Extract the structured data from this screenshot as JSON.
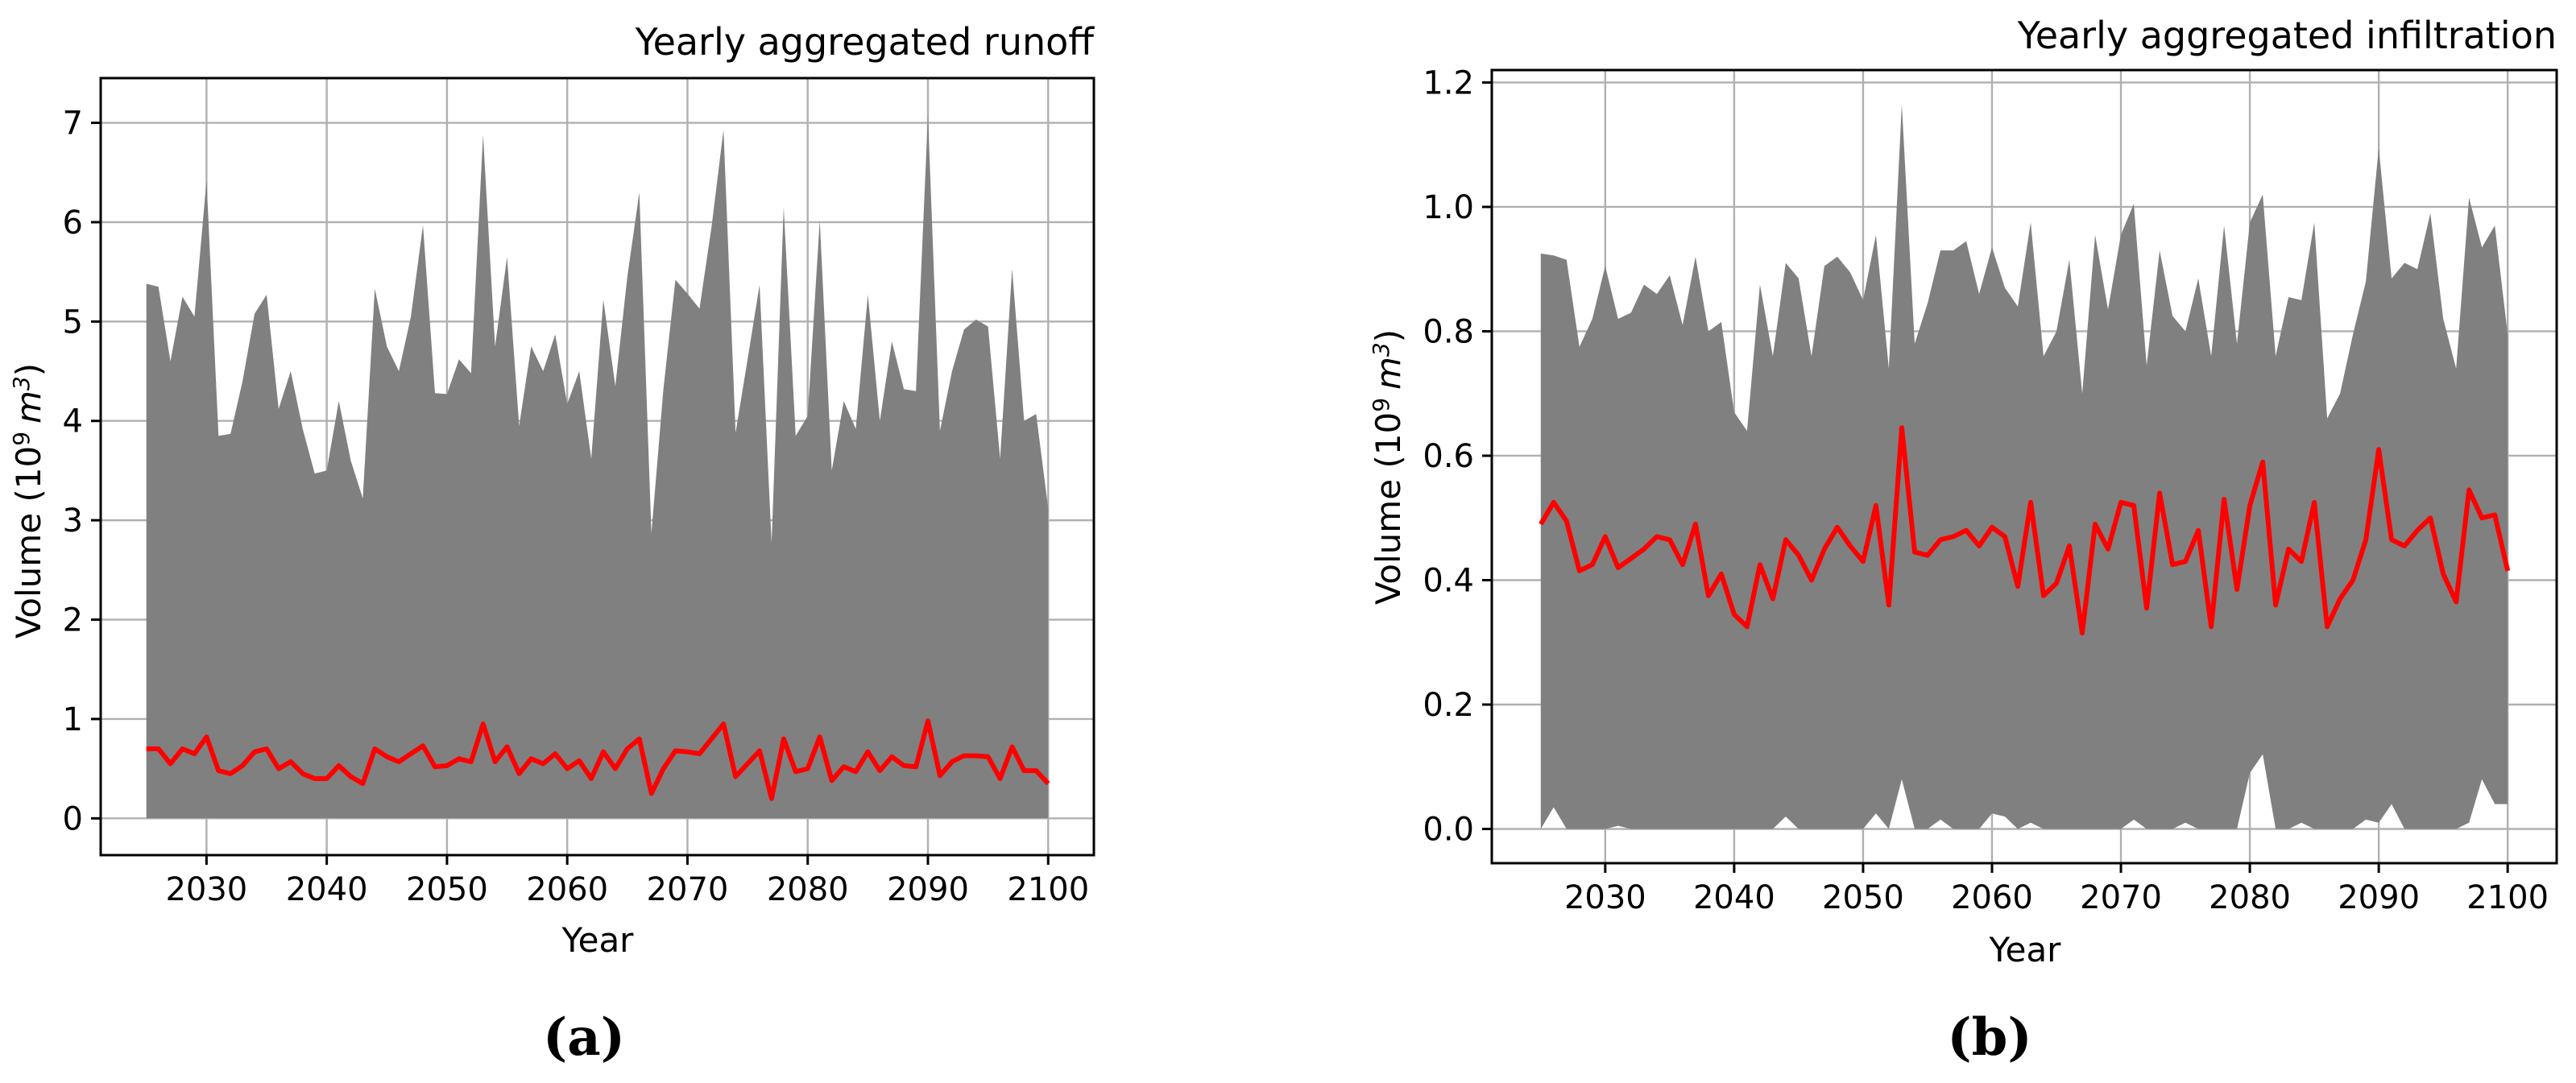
{
  "chart_data": [
    {
      "type": "area",
      "panel_label": "(a)",
      "title": "Yearly aggregated runoff",
      "xlabel": "Year",
      "ylabel_prefix": "Volume (10",
      "ylabel_exp": "9",
      "ylabel_unit": "m",
      "ylabel_unit_exp": "3",
      "ylabel_suffix": ")",
      "xlim": [
        2021.2,
        2103.8
      ],
      "ylim": [
        -0.37,
        7.45
      ],
      "xticks": [
        2030,
        2040,
        2050,
        2060,
        2070,
        2080,
        2090,
        2100
      ],
      "yticks": [
        0,
        1,
        2,
        3,
        4,
        5,
        6,
        7
      ],
      "grid": true,
      "x": [
        2025,
        2026,
        2027,
        2028,
        2029,
        2030,
        2031,
        2032,
        2033,
        2034,
        2035,
        2036,
        2037,
        2038,
        2039,
        2040,
        2041,
        2042,
        2043,
        2044,
        2045,
        2046,
        2047,
        2048,
        2049,
        2050,
        2051,
        2052,
        2053,
        2054,
        2055,
        2056,
        2057,
        2058,
        2059,
        2060,
        2061,
        2062,
        2063,
        2064,
        2065,
        2066,
        2067,
        2068,
        2069,
        2070,
        2071,
        2072,
        2073,
        2074,
        2075,
        2076,
        2077,
        2078,
        2079,
        2080,
        2081,
        2082,
        2083,
        2084,
        2085,
        2086,
        2087,
        2088,
        2089,
        2090,
        2091,
        2092,
        2093,
        2094,
        2095,
        2096,
        2097,
        2098,
        2099,
        2100
      ],
      "series": [
        {
          "role": "range-band",
          "color": "#808080",
          "lower": [
            0,
            0,
            0,
            0,
            0,
            0,
            0,
            0,
            0,
            0,
            0,
            0,
            0,
            0,
            0,
            0,
            0,
            0,
            0,
            0,
            0,
            0,
            0,
            0,
            0,
            0,
            0,
            0,
            0,
            0,
            0,
            0,
            0,
            0,
            0,
            0,
            0,
            0,
            0,
            0,
            0,
            0,
            0,
            0,
            0,
            0,
            0,
            0,
            0,
            0,
            0,
            0,
            0,
            0,
            0,
            0,
            0,
            0,
            0,
            0,
            0,
            0,
            0,
            0,
            0,
            0,
            0,
            0,
            0,
            0,
            0,
            0,
            0,
            0,
            0,
            0
          ],
          "upper": [
            5.38,
            5.35,
            4.6,
            5.25,
            5.05,
            6.42,
            3.85,
            3.87,
            4.4,
            5.08,
            5.27,
            4.12,
            4.5,
            3.92,
            3.47,
            3.5,
            4.2,
            3.6,
            3.22,
            5.33,
            4.75,
            4.5,
            5.05,
            5.97,
            4.28,
            4.27,
            4.62,
            4.48,
            6.88,
            4.75,
            5.65,
            3.95,
            4.75,
            4.5,
            4.87,
            4.17,
            4.5,
            3.62,
            5.22,
            4.35,
            5.45,
            6.3,
            2.87,
            4.32,
            5.42,
            5.28,
            5.13,
            5.95,
            6.93,
            3.88,
            4.62,
            5.37,
            2.77,
            6.15,
            3.85,
            4.05,
            6.02,
            3.5,
            4.2,
            3.92,
            5.27,
            4.0,
            4.8,
            4.32,
            4.3,
            7.08,
            3.9,
            4.5,
            4.92,
            5.02,
            4.95,
            3.62,
            5.53,
            4.0,
            4.07,
            3.12
          ]
        },
        {
          "role": "median",
          "color": "#ff0000",
          "values": [
            0.7,
            0.7,
            0.55,
            0.7,
            0.65,
            0.82,
            0.48,
            0.45,
            0.53,
            0.67,
            0.7,
            0.5,
            0.57,
            0.45,
            0.4,
            0.4,
            0.53,
            0.42,
            0.35,
            0.7,
            0.62,
            0.57,
            0.65,
            0.73,
            0.52,
            0.53,
            0.6,
            0.57,
            0.95,
            0.57,
            0.72,
            0.45,
            0.6,
            0.55,
            0.65,
            0.5,
            0.58,
            0.4,
            0.67,
            0.5,
            0.7,
            0.8,
            0.25,
            0.5,
            0.68,
            0.67,
            0.65,
            0.8,
            0.95,
            0.42,
            0.55,
            0.68,
            0.2,
            0.8,
            0.47,
            0.5,
            0.82,
            0.38,
            0.52,
            0.47,
            0.67,
            0.48,
            0.62,
            0.53,
            0.52,
            0.98,
            0.43,
            0.57,
            0.63,
            0.63,
            0.62,
            0.4,
            0.72,
            0.48,
            0.48,
            0.35
          ]
        }
      ]
    },
    {
      "type": "area",
      "panel_label": "(b)",
      "title": "Yearly aggregated infiltration",
      "xlabel": "Year",
      "ylabel_prefix": "Volume (10",
      "ylabel_exp": "9",
      "ylabel_unit": "m",
      "ylabel_unit_exp": "3",
      "ylabel_suffix": ")",
      "xlim": [
        2021.2,
        2103.8
      ],
      "ylim": [
        -0.055,
        1.22
      ],
      "xticks": [
        2030,
        2040,
        2050,
        2060,
        2070,
        2080,
        2090,
        2100
      ],
      "yticks": [
        "0.0",
        "0.2",
        "0.4",
        "0.6",
        "0.8",
        "1.0",
        "1.2"
      ],
      "grid": true,
      "x": [
        2025,
        2026,
        2027,
        2028,
        2029,
        2030,
        2031,
        2032,
        2033,
        2034,
        2035,
        2036,
        2037,
        2038,
        2039,
        2040,
        2041,
        2042,
        2043,
        2044,
        2045,
        2046,
        2047,
        2048,
        2049,
        2050,
        2051,
        2052,
        2053,
        2054,
        2055,
        2056,
        2057,
        2058,
        2059,
        2060,
        2061,
        2062,
        2063,
        2064,
        2065,
        2066,
        2067,
        2068,
        2069,
        2070,
        2071,
        2072,
        2073,
        2074,
        2075,
        2076,
        2077,
        2078,
        2079,
        2080,
        2081,
        2082,
        2083,
        2084,
        2085,
        2086,
        2087,
        2088,
        2089,
        2090,
        2091,
        2092,
        2093,
        2094,
        2095,
        2096,
        2097,
        2098,
        2099,
        2100
      ],
      "series": [
        {
          "role": "range-band",
          "color": "#808080",
          "lower": [
            0.0,
            0.035,
            0.0,
            0.0,
            0.0,
            0.0,
            0.005,
            0.0,
            0.0,
            0.0,
            0.0,
            0.0,
            0.0,
            0.0,
            0.0,
            0.0,
            0.0,
            0.0,
            0.0,
            0.02,
            0.0,
            0.0,
            0.0,
            0.0,
            0.0,
            0.0,
            0.025,
            0.0,
            0.08,
            0.0,
            0.0,
            0.015,
            0.0,
            0.0,
            0.0,
            0.025,
            0.02,
            0.0,
            0.01,
            0.0,
            0.0,
            0.0,
            0.0,
            0.0,
            0.0,
            0.0,
            0.015,
            0.0,
            0.0,
            0.0,
            0.01,
            0.0,
            0.0,
            0.0,
            0.0,
            0.09,
            0.12,
            0.0,
            0.0,
            0.01,
            0.0,
            0.0,
            0.0,
            0.0,
            0.015,
            0.01,
            0.04,
            0.0,
            0.0,
            0.0,
            0.0,
            0.0,
            0.01,
            0.08,
            0.04,
            0.04
          ],
          "upper": [
            0.925,
            0.922,
            0.915,
            0.775,
            0.82,
            0.905,
            0.82,
            0.83,
            0.875,
            0.86,
            0.89,
            0.81,
            0.92,
            0.8,
            0.815,
            0.67,
            0.64,
            0.875,
            0.76,
            0.91,
            0.885,
            0.76,
            0.905,
            0.92,
            0.895,
            0.85,
            0.955,
            0.74,
            1.165,
            0.78,
            0.845,
            0.93,
            0.93,
            0.945,
            0.86,
            0.935,
            0.87,
            0.84,
            0.975,
            0.76,
            0.8,
            0.915,
            0.7,
            0.955,
            0.835,
            0.955,
            1.005,
            0.745,
            0.93,
            0.825,
            0.8,
            0.885,
            0.76,
            0.97,
            0.78,
            0.975,
            1.02,
            0.76,
            0.855,
            0.85,
            0.975,
            0.66,
            0.7,
            0.795,
            0.88,
            1.095,
            0.885,
            0.91,
            0.9,
            0.99,
            0.82,
            0.74,
            1.015,
            0.935,
            0.97,
            0.795
          ]
        },
        {
          "role": "median",
          "color": "#ff0000",
          "values": [
            0.49,
            0.525,
            0.495,
            0.415,
            0.425,
            0.47,
            0.42,
            0.435,
            0.45,
            0.47,
            0.465,
            0.425,
            0.49,
            0.375,
            0.41,
            0.345,
            0.325,
            0.425,
            0.37,
            0.465,
            0.44,
            0.4,
            0.45,
            0.485,
            0.455,
            0.43,
            0.52,
            0.36,
            0.645,
            0.445,
            0.44,
            0.465,
            0.47,
            0.48,
            0.455,
            0.485,
            0.47,
            0.39,
            0.525,
            0.375,
            0.395,
            0.455,
            0.315,
            0.49,
            0.45,
            0.525,
            0.52,
            0.355,
            0.54,
            0.425,
            0.43,
            0.48,
            0.325,
            0.53,
            0.385,
            0.52,
            0.59,
            0.36,
            0.45,
            0.43,
            0.525,
            0.325,
            0.37,
            0.4,
            0.465,
            0.61,
            0.465,
            0.455,
            0.48,
            0.5,
            0.41,
            0.365,
            0.545,
            0.5,
            0.505,
            0.415
          ]
        }
      ]
    }
  ]
}
